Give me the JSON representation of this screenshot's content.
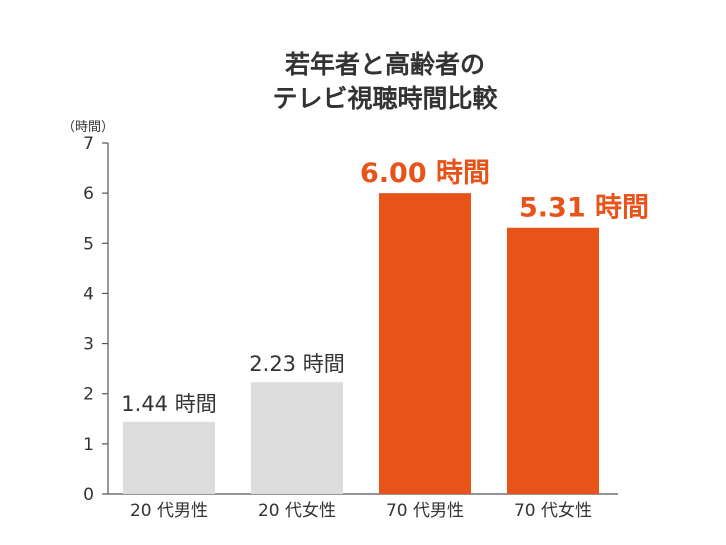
{
  "chart_data": {
    "type": "bar",
    "title_lines": [
      "若年者と高齢者の",
      "テレビ視聴時間比較"
    ],
    "unit_label": "（時間）",
    "categories": [
      "20 代男性",
      "20 代女性",
      "70 代男性",
      "70 代女性"
    ],
    "values": [
      1.44,
      2.23,
      6.0,
      5.31
    ],
    "value_labels": [
      "1.44 時間",
      "2.23 時間",
      "6.00 時間",
      "5.31 時間"
    ],
    "highlight": [
      false,
      false,
      true,
      true
    ],
    "ylim": [
      0,
      7
    ],
    "yticks": [
      "0",
      "1",
      "2",
      "3",
      "4",
      "5",
      "6",
      "7"
    ],
    "grid": false,
    "colors": {
      "normal_bar": "#dcdcdc",
      "highlight_bar": "#e8531a",
      "highlight_text": "#e8531a",
      "text": "#333333",
      "axis": "#555555"
    }
  }
}
